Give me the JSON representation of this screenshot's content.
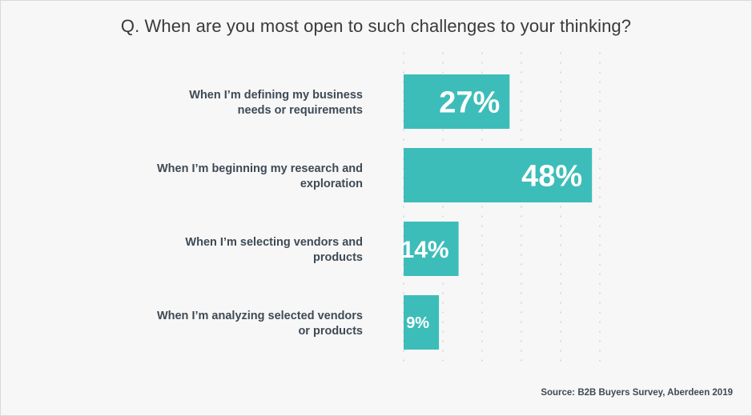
{
  "chart_data": {
    "type": "bar",
    "orientation": "horizontal",
    "title": "Q. When are you most open to such challenges to your thinking?",
    "categories": [
      [
        "When I’m defining my business",
        "needs or requirements"
      ],
      [
        "When I’m beginning my research and",
        "exploration"
      ],
      [
        "When I’m selecting vendors and",
        "products"
      ],
      [
        "When I’m analyzing selected vendors",
        "or products"
      ]
    ],
    "values": [
      27,
      48,
      14,
      9
    ],
    "value_labels": [
      "27%",
      "48%",
      "14%",
      "9%"
    ],
    "xlim": [
      0,
      50
    ],
    "grid": true,
    "bar_color": "#3dbdb9"
  },
  "source": "Source: B2B Buyers Survey, Aberdeen 2019"
}
